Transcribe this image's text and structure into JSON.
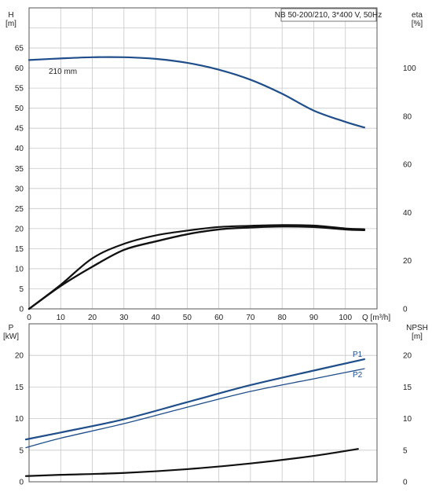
{
  "top_chart": {
    "left_axis_label_line1": "H",
    "left_axis_label_line2": "[m]",
    "right_axis_label_line1": "eta",
    "right_axis_label_line2": "[%]",
    "xlabel": "Q [m³/h]",
    "model_label": "NB 50-200/210, 3*400 V, 50Hz",
    "curve_label": "210 mm",
    "h_ticks": [
      0,
      5,
      10,
      15,
      20,
      25,
      30,
      35,
      40,
      45,
      50,
      55,
      60,
      65
    ],
    "eta_ticks": [
      0,
      20,
      40,
      60,
      80,
      100
    ],
    "x_ticks": [
      0,
      10,
      20,
      30,
      40,
      50,
      60,
      70,
      80,
      90,
      100
    ]
  },
  "bottom_chart": {
    "left_axis_label_line1": "P",
    "left_axis_label_line2": "[kW]",
    "right_axis_label_line1": "NPSH",
    "right_axis_label_line2": "[m]",
    "p_ticks": [
      0,
      5,
      10,
      15,
      20
    ],
    "npsh_ticks": [
      0,
      5,
      10,
      15,
      20
    ],
    "series_labels": {
      "p1": "P1",
      "p2": "P2"
    }
  },
  "colors": {
    "blue": "#1f4e8a",
    "black": "#111111",
    "grid": "#c8c8c8"
  },
  "chart_data": [
    {
      "type": "line",
      "title": "NB 50-200/210, 3*400 V, 50Hz",
      "xlabel": "Q [m³/h]",
      "ylabel": "H [m]",
      "y2label": "eta [%]",
      "xlim": [
        0,
        110
      ],
      "ylim": [
        0,
        75
      ],
      "y2lim": [
        0,
        125
      ],
      "grid": true,
      "series": [
        {
          "name": "210 mm",
          "axis": "H",
          "color": "#1f4e8a",
          "x": [
            0,
            10,
            20,
            30,
            40,
            50,
            60,
            70,
            80,
            90,
            100,
            106
          ],
          "y": [
            62.0,
            62.4,
            62.7,
            62.7,
            62.3,
            61.3,
            59.6,
            57.1,
            53.6,
            49.4,
            46.6,
            45.2
          ]
        },
        {
          "axis": "eta",
          "color": "#111111",
          "x": [
            0,
            10,
            20,
            30,
            40,
            50,
            60,
            70,
            80,
            90,
            100,
            106
          ],
          "y": [
            0,
            10,
            21,
            27,
            30.5,
            32.5,
            34.0,
            34.5,
            34.8,
            34.6,
            33.4,
            33.1
          ]
        },
        {
          "axis": "eta",
          "color": "#111111",
          "x": [
            0,
            10,
            20,
            30,
            40,
            50,
            60,
            70,
            80,
            90,
            100,
            106
          ],
          "y": [
            0,
            9.5,
            17.5,
            24.5,
            28.0,
            31.0,
            33.0,
            33.8,
            34.2,
            34.0,
            33.0,
            32.7
          ]
        }
      ]
    },
    {
      "type": "line",
      "ylabel": "P [kW]",
      "y2label": "NPSH [m]",
      "xlim": [
        0,
        110
      ],
      "ylim": [
        0,
        25
      ],
      "y2lim": [
        0,
        25
      ],
      "grid": true,
      "series": [
        {
          "name": "P1",
          "axis": "P",
          "color": "#1f4e8a",
          "x": [
            -1,
            10,
            30,
            50,
            70,
            90,
            106
          ],
          "y": [
            6.7,
            7.8,
            9.9,
            12.6,
            15.3,
            17.6,
            19.4
          ]
        },
        {
          "name": "P2",
          "axis": "P",
          "color": "#1f4e8a",
          "x": [
            -1,
            10,
            30,
            50,
            70,
            90,
            106
          ],
          "y": [
            5.4,
            6.9,
            9.2,
            11.8,
            14.3,
            16.3,
            17.9
          ]
        },
        {
          "axis": "NPSH",
          "color": "#111111",
          "x": [
            -1,
            10,
            30,
            50,
            70,
            90,
            104
          ],
          "y": [
            0.9,
            1.1,
            1.4,
            2.0,
            2.9,
            4.1,
            5.2
          ]
        }
      ]
    }
  ]
}
